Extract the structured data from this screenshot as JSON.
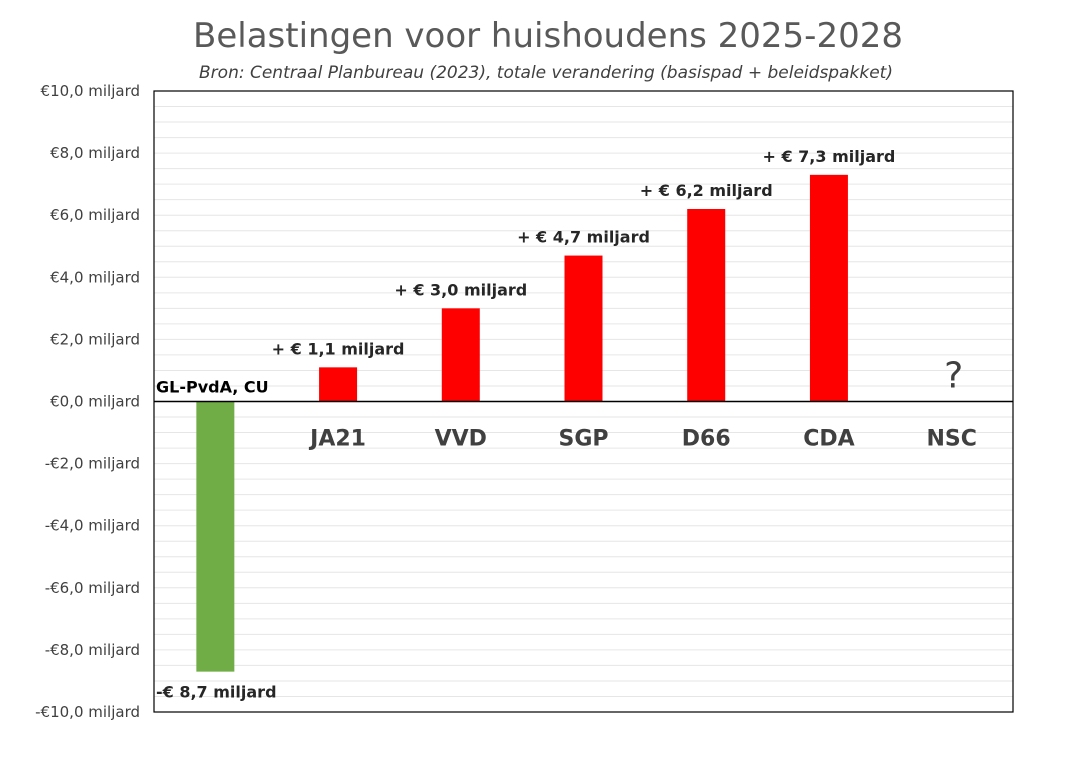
{
  "chart_data": {
    "type": "bar",
    "title": "Belastingen voor huishoudens 2025-2028",
    "subtitle": "Bron: Centraal Planbureau (2023), totale verandering (basispad + beleidspakket)",
    "xlabel": "",
    "ylabel": "",
    "ylim": [
      -10,
      10
    ],
    "ytick_values": [
      10,
      8,
      6,
      4,
      2,
      0,
      -2,
      -4,
      -6,
      -8,
      -10
    ],
    "ytick_labels": [
      "€10,0 miljard",
      "€8,0 miljard",
      "€6,0 miljard",
      "€4,0 miljard",
      "€2,0 miljard",
      "€0,0 miljard",
      "-€2,0 miljard",
      "-€4,0 miljard",
      "-€6,0 miljard",
      "-€8,0 miljard",
      "-€10,0 miljard"
    ],
    "grid": true,
    "categories": [
      "GL-PvdA, CU",
      "JA21",
      "VVD",
      "SGP",
      "D66",
      "CDA",
      "NSC"
    ],
    "values": [
      -8.7,
      1.1,
      3.0,
      4.7,
      6.2,
      7.3,
      null
    ],
    "data_labels": [
      "-€ 8,7 miljard",
      "+ € 1,1 miljard",
      "+ € 3,0 miljard",
      "+ € 4,7 miljard",
      "+ € 6,2 miljard",
      "+ € 7,3 miljard",
      "?"
    ],
    "colors": [
      "#70AD47",
      "#FF0000",
      "#FF0000",
      "#FF0000",
      "#FF0000",
      "#FF0000",
      "#FF0000"
    ]
  }
}
